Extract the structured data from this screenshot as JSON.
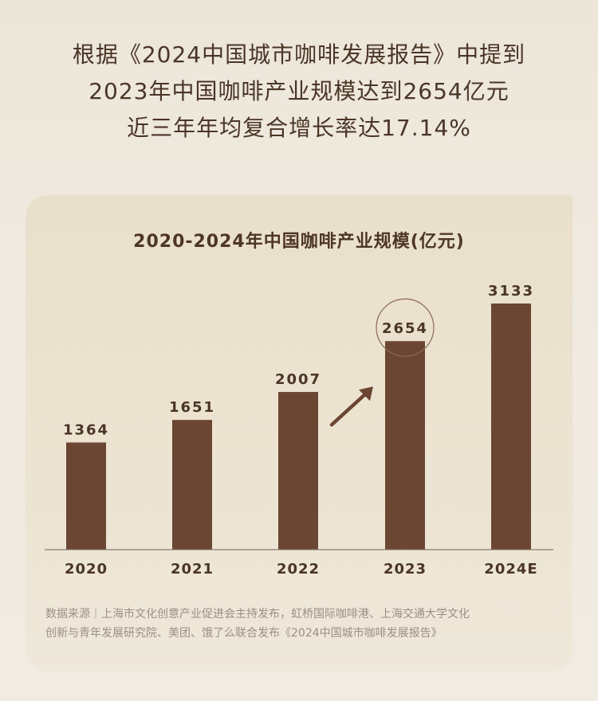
{
  "headline": {
    "line1": "根据《2024中国城市咖啡发展报告》中提到",
    "line2": "2023年中国咖啡产业规模达到2654亿元",
    "line3": "近三年年均复合增长率达17.14%"
  },
  "chart_data": {
    "type": "bar",
    "title": "2020-2024年中国咖啡产业规模(亿元)",
    "categories": [
      "2020",
      "2021",
      "2022",
      "2023",
      "2024E"
    ],
    "values": [
      1364,
      1651,
      2007,
      2654,
      3133
    ],
    "ylim": [
      0,
      3133
    ],
    "highlight_category": "2023",
    "grid": false,
    "legend": "none",
    "colors": {
      "bar": "#6b4632",
      "axis": "#8a7a6d",
      "label": "#4a3526",
      "arrow": "#6b4632",
      "circle": "#8b6a55"
    }
  },
  "footnote": {
    "line1": "数据来源｜上海市文化创意产业促进会主持发布，虹桥国际咖啡港、上海交通大学文化",
    "line2": "创新与青年发展研究院、美团、饿了么联合发布《2024中国城市咖啡发展报告》"
  }
}
